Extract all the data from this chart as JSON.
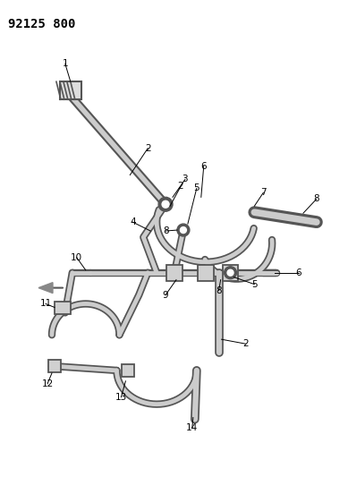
{
  "title": "92125 800",
  "background_color": "#ffffff",
  "text_color": "#000000",
  "label_fontsize": 7.5,
  "title_fontsize": 10,
  "fig_width": 3.89,
  "fig_height": 5.33,
  "dpi": 100,
  "tube_outer_color": "#555555",
  "tube_inner_color": "#cccccc",
  "tube_lw_outer": 6,
  "tube_lw_inner": 3.5
}
